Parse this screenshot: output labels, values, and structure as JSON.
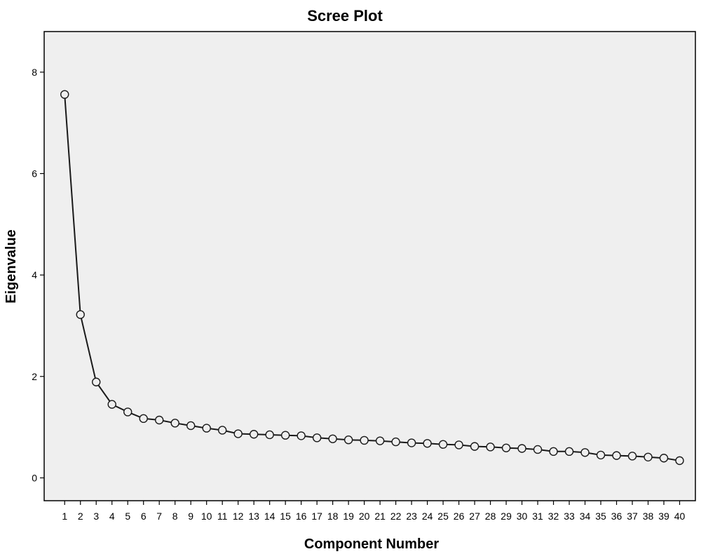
{
  "chart_data": {
    "type": "line",
    "title": "Scree Plot",
    "xlabel": "Component Number",
    "ylabel": "Eigenvalue",
    "x": [
      1,
      2,
      3,
      4,
      5,
      6,
      7,
      8,
      9,
      10,
      11,
      12,
      13,
      14,
      15,
      16,
      17,
      18,
      19,
      20,
      21,
      22,
      23,
      24,
      25,
      26,
      27,
      28,
      29,
      30,
      31,
      32,
      33,
      34,
      35,
      36,
      37,
      38,
      39,
      40
    ],
    "x_tick_labels": [
      "1",
      "2",
      "3",
      "4",
      "5",
      "6",
      "7",
      "8",
      "9",
      "10",
      "11",
      "12",
      "13",
      "14",
      "15",
      "16",
      "17",
      "18",
      "19",
      "20",
      "21",
      "22",
      "23",
      "24",
      "25",
      "26",
      "27",
      "28",
      "29",
      "30",
      "31",
      "32",
      "33",
      "34",
      "35",
      "36",
      "37",
      "38",
      "39",
      "40"
    ],
    "series": [
      {
        "values": [
          7.56,
          3.22,
          1.89,
          1.45,
          1.3,
          1.17,
          1.14,
          1.08,
          1.03,
          0.98,
          0.94,
          0.87,
          0.86,
          0.85,
          0.84,
          0.83,
          0.79,
          0.77,
          0.75,
          0.74,
          0.73,
          0.71,
          0.69,
          0.68,
          0.66,
          0.65,
          0.62,
          0.61,
          0.59,
          0.58,
          0.56,
          0.52,
          0.52,
          0.5,
          0.45,
          0.44,
          0.43,
          0.41,
          0.39,
          0.34
        ]
      }
    ],
    "y_ticks": [
      0,
      2,
      4,
      6,
      8
    ],
    "ylim": [
      -0.45,
      8.8
    ],
    "xlim": [
      -0.3,
      41.0
    ],
    "grid": false,
    "legend": "none",
    "marker": "open-circle",
    "colors": {
      "plot_background": "#efefef",
      "line": "#1a1a1a",
      "marker_fill": "#efefef"
    }
  }
}
